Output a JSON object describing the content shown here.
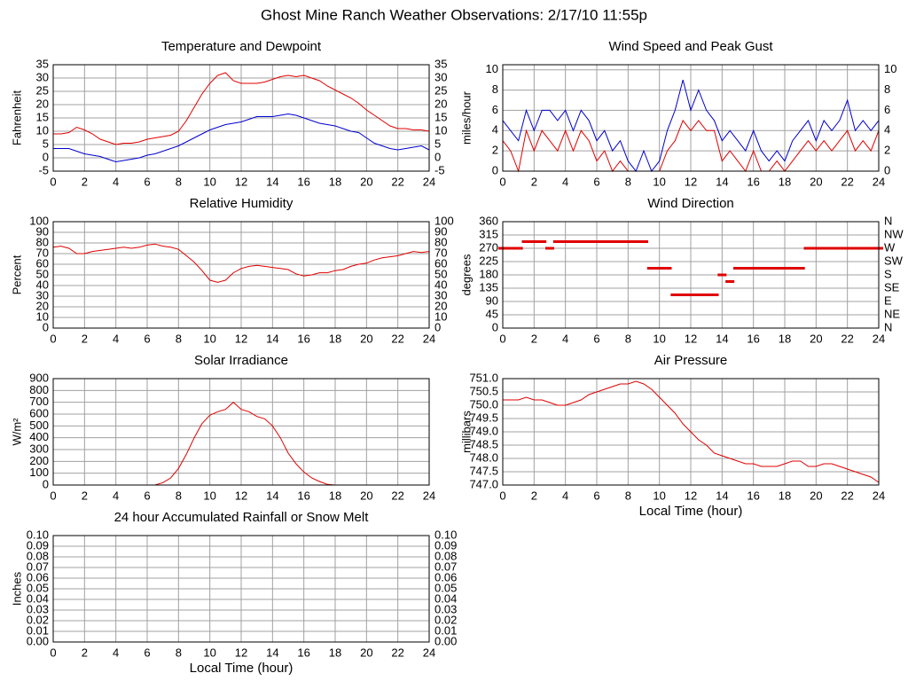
{
  "title": "Ghost Mine Ranch Weather Observations: 2/17/10 11:55p",
  "chart_data": [
    {
      "type": "line",
      "title": "Temperature and Dewpoint",
      "ylabel": "Fahrenheit",
      "mirror_y": true,
      "xlim": [
        0,
        24
      ],
      "xticks": [
        0,
        2,
        4,
        6,
        8,
        10,
        12,
        14,
        16,
        18,
        20,
        22,
        24
      ],
      "ylim": [
        -5,
        35
      ],
      "yticks": [
        -5,
        0,
        5,
        10,
        15,
        20,
        25,
        30,
        35
      ],
      "grid": true,
      "x": [
        0,
        0.5,
        1,
        1.5,
        2,
        2.5,
        3,
        3.5,
        4,
        4.5,
        5,
        5.5,
        6,
        6.5,
        7,
        7.5,
        8,
        8.5,
        9,
        9.5,
        10,
        10.5,
        11,
        11.5,
        12,
        12.5,
        13,
        13.5,
        14,
        14.5,
        15,
        15.5,
        16,
        16.5,
        17,
        17.5,
        18,
        18.5,
        19,
        19.5,
        20,
        20.5,
        21,
        21.5,
        22,
        22.5,
        23,
        23.5,
        24
      ],
      "series": [
        {
          "color": "#e00000",
          "values": [
            9,
            9,
            9.5,
            11.5,
            10.5,
            9,
            7,
            6,
            5,
            5.5,
            5.5,
            6,
            7,
            7.5,
            8,
            8.5,
            10,
            14,
            19,
            24,
            28,
            31,
            32,
            29,
            28,
            28,
            28,
            28.5,
            29.5,
            30.5,
            31,
            30.5,
            31,
            30,
            29,
            27,
            25.5,
            24,
            22.5,
            20.5,
            18,
            16,
            14,
            12,
            11,
            11,
            10.5,
            10.5,
            10
          ]
        },
        {
          "color": "#0000d0",
          "values": [
            3.5,
            3.5,
            3.5,
            2.5,
            1.5,
            1,
            0.5,
            -0.5,
            -1.5,
            -1,
            -0.5,
            0,
            1,
            1.5,
            2.5,
            3.5,
            4.5,
            6,
            7.5,
            9,
            10.5,
            11.5,
            12.5,
            13,
            13.5,
            14.5,
            15.5,
            15.5,
            15.5,
            16,
            16.5,
            16,
            15,
            14,
            13,
            12.5,
            12,
            11,
            10,
            9.5,
            7.5,
            5.5,
            4.5,
            3.5,
            3,
            3.5,
            4,
            4.5,
            3
          ]
        }
      ]
    },
    {
      "type": "line",
      "title": "Wind Speed and Peak Gust",
      "ylabel": "miles/hour",
      "mirror_y": true,
      "xlim": [
        0,
        24
      ],
      "xticks": [
        0,
        2,
        4,
        6,
        8,
        10,
        12,
        14,
        16,
        18,
        20,
        22,
        24
      ],
      "ylim": [
        0,
        10.5
      ],
      "yticks": [
        0,
        2,
        4,
        6,
        8,
        10
      ],
      "grid": true,
      "x": [
        0,
        0.5,
        1,
        1.5,
        2,
        2.5,
        3,
        3.5,
        4,
        4.5,
        5,
        5.5,
        6,
        6.5,
        7,
        7.5,
        8,
        8.5,
        9,
        9.5,
        10,
        10.5,
        11,
        11.5,
        12,
        12.5,
        13,
        13.5,
        14,
        14.5,
        15,
        15.5,
        16,
        16.5,
        17,
        17.5,
        18,
        18.5,
        19,
        19.5,
        20,
        20.5,
        21,
        21.5,
        22,
        22.5,
        23,
        23.5,
        24
      ],
      "series": [
        {
          "color": "#0000d0",
          "values": [
            5,
            4,
            3,
            6,
            4,
            6,
            6,
            5,
            6,
            4,
            6,
            5,
            3,
            4,
            2,
            3,
            1,
            0,
            2,
            0,
            1,
            4,
            6,
            9,
            6,
            8,
            6,
            5,
            3,
            4,
            3,
            2,
            4,
            2,
            1,
            2,
            1,
            3,
            4,
            5,
            3,
            5,
            4,
            5,
            7,
            4,
            5,
            4,
            5
          ]
        },
        {
          "color": "#e00000",
          "values": [
            3,
            2,
            0,
            4,
            2,
            4,
            3,
            2,
            4,
            2,
            4,
            3,
            1,
            2,
            0,
            1,
            0,
            0,
            0,
            0,
            0,
            2,
            3,
            5,
            4,
            5,
            4,
            4,
            1,
            2,
            1,
            0,
            2,
            0,
            0,
            1,
            0,
            1,
            2,
            3,
            2,
            3,
            2,
            3,
            4,
            2,
            3,
            2,
            4
          ]
        }
      ]
    },
    {
      "type": "line",
      "title": "Relative Humidity",
      "ylabel": "Percent",
      "mirror_y": true,
      "xlim": [
        0,
        24
      ],
      "xticks": [
        0,
        2,
        4,
        6,
        8,
        10,
        12,
        14,
        16,
        18,
        20,
        22,
        24
      ],
      "ylim": [
        0,
        100
      ],
      "yticks": [
        0,
        10,
        20,
        30,
        40,
        50,
        60,
        70,
        80,
        90,
        100
      ],
      "grid": true,
      "x": [
        0,
        0.5,
        1,
        1.5,
        2,
        2.5,
        3,
        3.5,
        4,
        4.5,
        5,
        5.5,
        6,
        6.5,
        7,
        7.5,
        8,
        8.5,
        9,
        9.5,
        10,
        10.5,
        11,
        11.5,
        12,
        12.5,
        13,
        13.5,
        14,
        14.5,
        15,
        15.5,
        16,
        16.5,
        17,
        17.5,
        18,
        18.5,
        19,
        19.5,
        20,
        20.5,
        21,
        21.5,
        22,
        22.5,
        23,
        23.5,
        24
      ],
      "series": [
        {
          "color": "#e00000",
          "values": [
            76,
            77,
            75,
            70,
            70,
            72,
            73,
            74,
            75,
            76,
            75,
            76,
            78,
            79,
            77,
            76,
            74,
            68,
            62,
            54,
            45,
            43,
            45,
            52,
            56,
            58,
            59,
            58,
            57,
            56,
            55,
            51,
            49,
            50,
            52,
            52,
            54,
            55,
            58,
            60,
            61,
            64,
            66,
            67,
            68,
            70,
            72,
            71,
            72
          ]
        }
      ]
    },
    {
      "type": "scatter",
      "title": "Wind Direction",
      "ylabel": "degrees",
      "xlim": [
        0,
        24
      ],
      "xticks": [
        0,
        2,
        4,
        6,
        8,
        10,
        12,
        14,
        16,
        18,
        20,
        22,
        24
      ],
      "ylim": [
        0,
        360
      ],
      "yticks": [
        0,
        45,
        90,
        135,
        180,
        225,
        270,
        315,
        360
      ],
      "grid": true,
      "y2lim": [
        0,
        360
      ],
      "y2ticks": [
        {
          "value": 0,
          "label": "N"
        },
        {
          "value": 45,
          "label": "NE"
        },
        {
          "value": 90,
          "label": "E"
        },
        {
          "value": 135,
          "label": "SE"
        },
        {
          "value": 180,
          "label": "S"
        },
        {
          "value": 225,
          "label": "SW"
        },
        {
          "value": 270,
          "label": "W"
        },
        {
          "value": 315,
          "label": "NW"
        },
        {
          "value": 360,
          "label": "N"
        }
      ],
      "x": [
        0,
        0.5,
        1,
        1.5,
        2,
        2.5,
        3,
        3.5,
        4,
        4.5,
        5,
        5.5,
        6,
        6.5,
        7,
        7.5,
        8,
        8.5,
        9,
        9.5,
        10,
        10.5,
        11,
        11.5,
        12,
        12.5,
        13,
        13.5,
        14,
        14.5,
        15,
        15.5,
        16,
        16.5,
        17,
        17.5,
        18,
        18.5,
        19,
        19.5,
        20,
        20.5,
        21,
        21.5,
        22,
        22.5,
        23,
        23.5,
        24
      ],
      "series": [
        {
          "color": "#e00000",
          "values": [
            270,
            270,
            270,
            292.5,
            292.5,
            292.5,
            270,
            292.5,
            292.5,
            292.5,
            292.5,
            292.5,
            292.5,
            292.5,
            292.5,
            292.5,
            292.5,
            292.5,
            292.5,
            202.5,
            202.5,
            202.5,
            112.5,
            112.5,
            112.5,
            112.5,
            112.5,
            112.5,
            180,
            157.5,
            202.5,
            202.5,
            202.5,
            202.5,
            202.5,
            202.5,
            202.5,
            202.5,
            202.5,
            270,
            270,
            270,
            270,
            270,
            270,
            270,
            270,
            270,
            270
          ]
        }
      ]
    },
    {
      "type": "line",
      "title": "Solar Irradiance",
      "ylabel": "W/m²",
      "xlim": [
        0,
        24
      ],
      "xticks": [
        0,
        2,
        4,
        6,
        8,
        10,
        12,
        14,
        16,
        18,
        20,
        22,
        24
      ],
      "ylim": [
        0,
        900
      ],
      "yticks": [
        0,
        100,
        200,
        300,
        400,
        500,
        600,
        700,
        800,
        900
      ],
      "grid": true,
      "x": [
        0,
        0.5,
        1,
        1.5,
        2,
        2.5,
        3,
        3.5,
        4,
        4.5,
        5,
        5.5,
        6,
        6.5,
        7,
        7.5,
        8,
        8.5,
        9,
        9.5,
        10,
        10.5,
        11,
        11.5,
        12,
        12.5,
        13,
        13.5,
        14,
        14.5,
        15,
        15.5,
        16,
        16.5,
        17,
        17.5,
        18,
        18.5,
        19,
        19.5,
        20,
        20.5,
        21,
        21.5,
        22,
        22.5,
        23,
        23.5,
        24
      ],
      "series": [
        {
          "color": "#e00000",
          "values": [
            0,
            0,
            0,
            0,
            0,
            0,
            0,
            0,
            0,
            0,
            0,
            0,
            0,
            0,
            20,
            60,
            140,
            260,
            400,
            520,
            590,
            620,
            640,
            700,
            640,
            620,
            580,
            560,
            500,
            400,
            270,
            180,
            110,
            60,
            30,
            5,
            0,
            0,
            0,
            0,
            0,
            0,
            0,
            0,
            0,
            0,
            0,
            0,
            0
          ]
        }
      ]
    },
    {
      "type": "line",
      "title": "Air Pressure",
      "ylabel": "millibars",
      "xlabel": "Local Time (hour)",
      "xlim": [
        0,
        24
      ],
      "xticks": [
        0,
        2,
        4,
        6,
        8,
        10,
        12,
        14,
        16,
        18,
        20,
        22,
        24
      ],
      "ylim": [
        747,
        751
      ],
      "yticks": [
        {
          "value": 747,
          "label": "747.0"
        },
        747.5,
        {
          "value": 748,
          "label": "748.0"
        },
        748.5,
        {
          "value": 749,
          "label": "749.0"
        },
        749.5,
        {
          "value": 750,
          "label": "750.0"
        },
        750.5,
        {
          "value": 751,
          "label": "751.0"
        }
      ],
      "grid": true,
      "x": [
        0,
        0.5,
        1,
        1.5,
        2,
        2.5,
        3,
        3.5,
        4,
        4.5,
        5,
        5.5,
        6,
        6.5,
        7,
        7.5,
        8,
        8.5,
        9,
        9.5,
        10,
        10.5,
        11,
        11.5,
        12,
        12.5,
        13,
        13.5,
        14,
        14.5,
        15,
        15.5,
        16,
        16.5,
        17,
        17.5,
        18,
        18.5,
        19,
        19.5,
        20,
        20.5,
        21,
        21.5,
        22,
        22.5,
        23,
        23.5,
        24
      ],
      "series": [
        {
          "color": "#e00000",
          "values": [
            750.2,
            750.2,
            750.2,
            750.3,
            750.2,
            750.2,
            750.1,
            750.0,
            750.0,
            750.1,
            750.2,
            750.4,
            750.5,
            750.6,
            750.7,
            750.8,
            750.8,
            750.9,
            750.8,
            750.6,
            750.3,
            750.0,
            749.7,
            749.3,
            749.0,
            748.7,
            748.5,
            748.2,
            748.1,
            748.0,
            747.9,
            747.8,
            747.8,
            747.7,
            747.7,
            747.7,
            747.8,
            747.9,
            747.9,
            747.7,
            747.7,
            747.8,
            747.8,
            747.7,
            747.6,
            747.5,
            747.4,
            747.3,
            747.1
          ]
        }
      ]
    },
    {
      "type": "line",
      "title": "24 hour Accumulated Rainfall or Snow Melt",
      "ylabel": "Inches",
      "xlabel": "Local Time (hour)",
      "mirror_y": true,
      "xlim": [
        0,
        24
      ],
      "xticks": [
        0,
        2,
        4,
        6,
        8,
        10,
        12,
        14,
        16,
        18,
        20,
        22,
        24
      ],
      "ylim": [
        0,
        0.1
      ],
      "yticks": [
        {
          "value": 0,
          "label": "0.00"
        },
        0.01,
        0.02,
        0.03,
        0.04,
        0.05,
        0.06,
        0.07,
        0.08,
        0.09,
        {
          "value": 0.1,
          "label": "0.10"
        }
      ],
      "grid": true,
      "x": [
        0,
        24
      ],
      "series": [
        {
          "color": "#e00000",
          "values": [
            0,
            0
          ]
        }
      ]
    }
  ]
}
